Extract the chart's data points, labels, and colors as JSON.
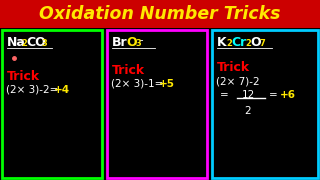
{
  "title": "Oxidation Number Tricks",
  "title_color": "#FFE800",
  "title_bg": "#CC0000",
  "bg_color": "#000000",
  "box1_border": "#00FF00",
  "box2_border": "#FF00FF",
  "box3_border": "#00CCFF",
  "trick_color": "#FF0000",
  "white": "#FFFFFF",
  "yellow": "#FFE800",
  "cyan": "#00FFFF",
  "pink_dot": "#FF6666",
  "box3_num": "12",
  "box3_den": "2"
}
